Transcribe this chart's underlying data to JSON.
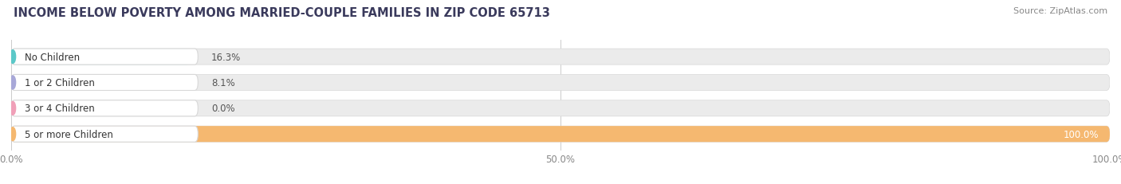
{
  "title": "INCOME BELOW POVERTY AMONG MARRIED-COUPLE FAMILIES IN ZIP CODE 65713",
  "source": "Source: ZipAtlas.com",
  "categories": [
    "No Children",
    "1 or 2 Children",
    "3 or 4 Children",
    "5 or more Children"
  ],
  "values": [
    16.3,
    8.1,
    0.0,
    100.0
  ],
  "bar_colors": [
    "#5bc8c8",
    "#a8a8d8",
    "#f0a0b8",
    "#f5b870"
  ],
  "bg_color": "#ffffff",
  "bar_bg_color": "#ebebeb",
  "label_pill_color": "#ffffff",
  "xlim": [
    0,
    100
  ],
  "xticks": [
    0,
    50,
    100
  ],
  "xticklabels": [
    "0.0%",
    "50.0%",
    "100.0%"
  ],
  "title_fontsize": 10.5,
  "source_fontsize": 8,
  "label_fontsize": 8.5,
  "value_fontsize": 8.5,
  "bar_height": 0.62,
  "figsize": [
    14.06,
    2.32
  ],
  "dpi": 100
}
